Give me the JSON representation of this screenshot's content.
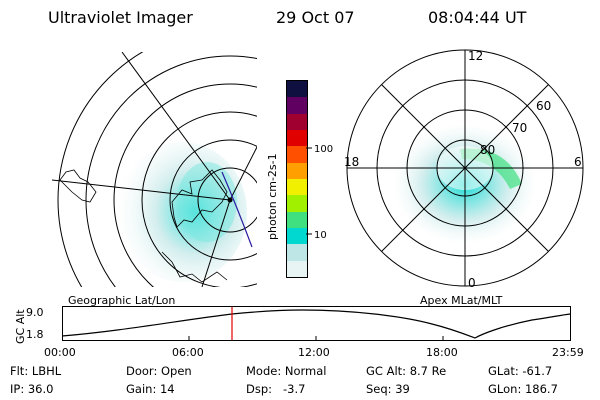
{
  "header": {
    "instrument": "Ultraviolet Imager",
    "date": "29 Oct 07",
    "time": "08:04:44 UT"
  },
  "left_panel": {
    "caption": "Geographic Lat/Lon"
  },
  "right_panel": {
    "caption": "Apex MLat/MLT",
    "mlt_labels": {
      "top": "12",
      "left": "18",
      "right": "6",
      "bottom": "0"
    },
    "lat_labels": [
      "60",
      "70",
      "80"
    ]
  },
  "colorbar": {
    "unit_label": "photon cm-2s-1",
    "ticks": [
      "100",
      "10"
    ],
    "colors": [
      "#e8f4f4",
      "#bfe6e6",
      "#00d8d0",
      "#40e080",
      "#a0f000",
      "#f0f000",
      "#ffa000",
      "#ff5000",
      "#e00000",
      "#a00030",
      "#600060",
      "#101040"
    ]
  },
  "altitude_plot": {
    "y_label": "GC Alt",
    "y_ticks": [
      "9.0",
      "1.8"
    ],
    "x_ticks": [
      "00:00",
      "06:00",
      "12:00",
      "18:00",
      "23:59"
    ],
    "current_marker_color": "#e00000"
  },
  "info": {
    "filter": "Flt: LBHL",
    "door": "Door: Open",
    "mode": "Mode: Normal",
    "gc_alt": "GC Alt: 8.7 Re",
    "glat": "GLat: -61.7",
    "ip": "IP: 36.0",
    "gain": "Gain: 14",
    "dsp": "Dsp:   -3.7",
    "seq": "Seq: 39",
    "glon": "GLon: 186.7"
  }
}
